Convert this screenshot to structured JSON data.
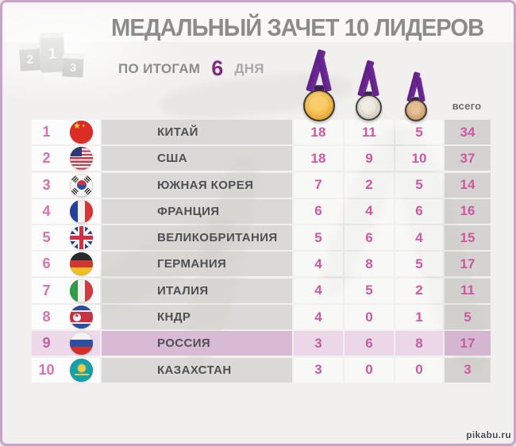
{
  "header": {
    "title": "МЕДАЛЬНЫЙ ЗАЧЕТ 10 ЛИДЕРОВ",
    "subtitle_prefix": "ПО ИТОГАМ",
    "day_number": "6",
    "subtitle_suffix": "ДНЯ",
    "podium": {
      "first": "1",
      "second": "2",
      "third": "3"
    }
  },
  "medals": {
    "gold_icon": "gold-medal-icon",
    "silver_icon": "silver-medal-icon",
    "bronze_icon": "bronze-medal-icon",
    "ribbon_color": "#6a2590",
    "gold_color": "#f0b33f",
    "silver_color": "#ddd6c8",
    "bronze_color": "#d5a876"
  },
  "table": {
    "total_header": "всего",
    "accent_color": "#ce58a0",
    "highlight_row_color": "#d9bad5"
  },
  "footer": {
    "watermark": "pikabu.ru"
  },
  "chart_data": {
    "type": "table",
    "title": "МЕДАЛЬНЫЙ ЗАЧЕТ 10 ЛИДЕРОВ",
    "subtitle": "ПО ИТОГАМ 6 ДНЯ",
    "columns": [
      "rank",
      "country",
      "gold",
      "silver",
      "bronze",
      "total"
    ],
    "rows": [
      {
        "rank": "1",
        "flag": "china-flag-icon",
        "flag_class": "china",
        "country": "КИТАЙ",
        "gold": "18",
        "silver": "11",
        "bronze": "5",
        "total": "34",
        "highlighted": false
      },
      {
        "rank": "2",
        "flag": "usa-flag-icon",
        "flag_class": "usa",
        "country": "США",
        "gold": "18",
        "silver": "9",
        "bronze": "10",
        "total": "37",
        "highlighted": false
      },
      {
        "rank": "3",
        "flag": "south-korea-flag-icon",
        "flag_class": "south-korea",
        "country": "ЮЖНАЯ КОРЕЯ",
        "gold": "7",
        "silver": "2",
        "bronze": "5",
        "total": "14",
        "highlighted": false
      },
      {
        "rank": "4",
        "flag": "france-flag-icon",
        "flag_class": "france",
        "country": "ФРАНЦИЯ",
        "gold": "6",
        "silver": "4",
        "bronze": "6",
        "total": "16",
        "highlighted": false
      },
      {
        "rank": "5",
        "flag": "uk-flag-icon",
        "flag_class": "uk",
        "country": "ВЕЛИКОБРИТАНИЯ",
        "gold": "5",
        "silver": "6",
        "bronze": "4",
        "total": "15",
        "highlighted": false
      },
      {
        "rank": "6",
        "flag": "germany-flag-icon",
        "flag_class": "germany",
        "country": "ГЕРМАНИЯ",
        "gold": "4",
        "silver": "8",
        "bronze": "5",
        "total": "17",
        "highlighted": false
      },
      {
        "rank": "7",
        "flag": "italy-flag-icon",
        "flag_class": "italy",
        "country": "ИТАЛИЯ",
        "gold": "4",
        "silver": "5",
        "bronze": "2",
        "total": "11",
        "highlighted": false
      },
      {
        "rank": "8",
        "flag": "north-korea-flag-icon",
        "flag_class": "north-korea",
        "country": "КНДР",
        "gold": "4",
        "silver": "0",
        "bronze": "1",
        "total": "5",
        "highlighted": false
      },
      {
        "rank": "9",
        "flag": "russia-flag-icon",
        "flag_class": "russia",
        "country": "РОССИЯ",
        "gold": "3",
        "silver": "6",
        "bronze": "8",
        "total": "17",
        "highlighted": true
      },
      {
        "rank": "10",
        "flag": "kazakhstan-flag-icon",
        "flag_class": "kazakhstan",
        "country": "КАЗАХСТАН",
        "gold": "3",
        "silver": "0",
        "bronze": "0",
        "total": "3",
        "highlighted": false
      }
    ]
  }
}
